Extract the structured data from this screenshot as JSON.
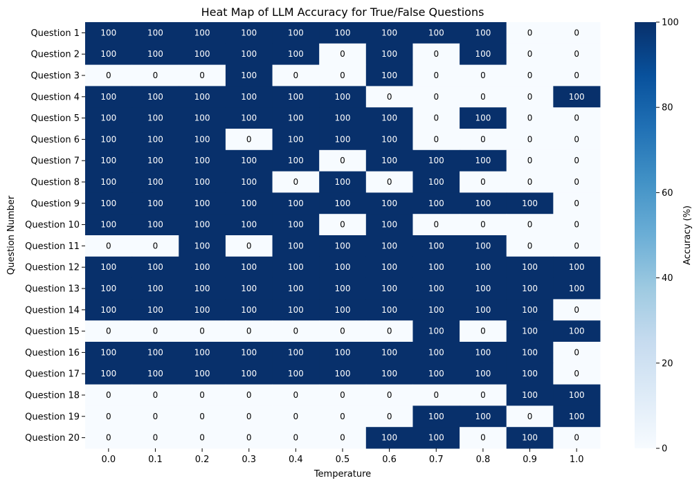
{
  "chart_data": {
    "type": "heatmap",
    "title": "Heat Map of LLM Accuracy for True/False Questions",
    "xlabel": "Temperature",
    "ylabel": "Question Number",
    "colorbar_label": "Accuracy (%)",
    "colorbar_ticks": [
      "0",
      "20",
      "40",
      "60",
      "80",
      "100"
    ],
    "colorbar_range": [
      0,
      100
    ],
    "colormap": "Blues",
    "color_low": "#f7fbff",
    "color_high": "#08306b",
    "annotation_color_light": "#ffffff",
    "annotation_color_dark": "#000000",
    "x_categories": [
      "0.0",
      "0.1",
      "0.2",
      "0.3",
      "0.4",
      "0.5",
      "0.6",
      "0.7",
      "0.8",
      "0.9",
      "1.0"
    ],
    "y_categories": [
      "Question 1",
      "Question 2",
      "Question 3",
      "Question 4",
      "Question 5",
      "Question 6",
      "Question 7",
      "Question 8",
      "Question 9",
      "Question 10",
      "Question 11",
      "Question 12",
      "Question 13",
      "Question 14",
      "Question 15",
      "Question 16",
      "Question 17",
      "Question 18",
      "Question 19",
      "Question 20"
    ],
    "values": [
      [
        100,
        100,
        100,
        100,
        100,
        100,
        100,
        100,
        100,
        0,
        0
      ],
      [
        100,
        100,
        100,
        100,
        100,
        0,
        100,
        0,
        100,
        0,
        0
      ],
      [
        0,
        0,
        0,
        100,
        0,
        0,
        100,
        0,
        0,
        0,
        0
      ],
      [
        100,
        100,
        100,
        100,
        100,
        100,
        0,
        0,
        0,
        0,
        100
      ],
      [
        100,
        100,
        100,
        100,
        100,
        100,
        100,
        0,
        100,
        0,
        0
      ],
      [
        100,
        100,
        100,
        0,
        100,
        100,
        100,
        0,
        0,
        0,
        0
      ],
      [
        100,
        100,
        100,
        100,
        100,
        0,
        100,
        100,
        100,
        0,
        0
      ],
      [
        100,
        100,
        100,
        100,
        0,
        100,
        0,
        100,
        0,
        0,
        0
      ],
      [
        100,
        100,
        100,
        100,
        100,
        100,
        100,
        100,
        100,
        100,
        0
      ],
      [
        100,
        100,
        100,
        100,
        100,
        0,
        100,
        0,
        0,
        0,
        0
      ],
      [
        0,
        0,
        100,
        0,
        100,
        100,
        100,
        100,
        100,
        0,
        0
      ],
      [
        100,
        100,
        100,
        100,
        100,
        100,
        100,
        100,
        100,
        100,
        100
      ],
      [
        100,
        100,
        100,
        100,
        100,
        100,
        100,
        100,
        100,
        100,
        100
      ],
      [
        100,
        100,
        100,
        100,
        100,
        100,
        100,
        100,
        100,
        100,
        0
      ],
      [
        0,
        0,
        0,
        0,
        0,
        0,
        0,
        100,
        0,
        100,
        100
      ],
      [
        100,
        100,
        100,
        100,
        100,
        100,
        100,
        100,
        100,
        100,
        0
      ],
      [
        100,
        100,
        100,
        100,
        100,
        100,
        100,
        100,
        100,
        100,
        0
      ],
      [
        0,
        0,
        0,
        0,
        0,
        0,
        0,
        0,
        0,
        100,
        100
      ],
      [
        0,
        0,
        0,
        0,
        0,
        0,
        0,
        100,
        100,
        0,
        100
      ],
      [
        0,
        0,
        0,
        0,
        0,
        0,
        100,
        100,
        0,
        100,
        0
      ]
    ]
  }
}
